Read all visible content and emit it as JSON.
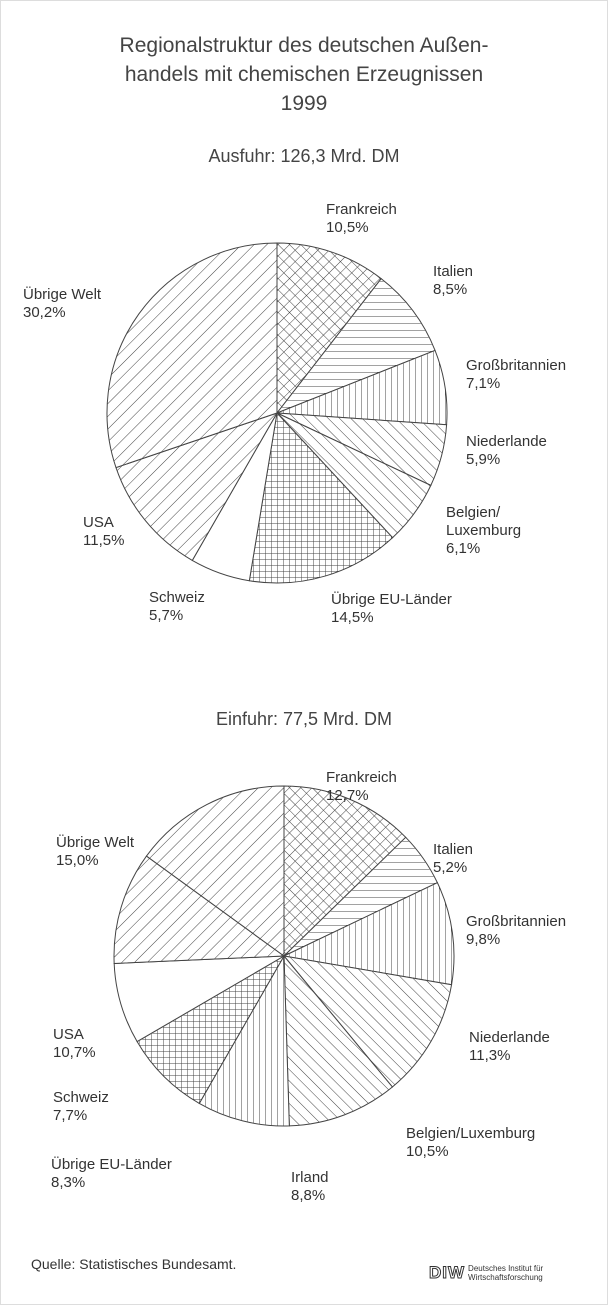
{
  "title": [
    "Regionalstruktur des deutschen Außen-",
    "handels mit chemischen Erzeugnissen",
    "1999"
  ],
  "chart_data": [
    {
      "type": "pie",
      "title": "Ausfuhr: 126,3 Mrd. DM",
      "categories": [
        "Frankreich",
        "Italien",
        "Großbritannien",
        "Niederlande",
        "Belgien/\nLuxemburg",
        "Übrige EU-Länder",
        "Schweiz",
        "USA",
        "Übrige Welt"
      ],
      "values": [
        10.5,
        8.5,
        7.1,
        5.9,
        6.1,
        14.5,
        5.7,
        11.5,
        30.2
      ],
      "value_labels": [
        "10,5%",
        "8,5%",
        "7,1%",
        "5,9%",
        "6,1%",
        "14,5%",
        "5,7%",
        "11,5%",
        "30,2%"
      ]
    },
    {
      "type": "pie",
      "title": "Einfuhr: 77,5 Mrd. DM",
      "categories": [
        "Frankreich",
        "Italien",
        "Großbritannien",
        "Niederlande",
        "Belgien/Luxemburg",
        "Irland",
        "Übrige EU-Länder",
        "Schweiz",
        "USA",
        "Übrige Welt"
      ],
      "values": [
        12.7,
        5.2,
        9.8,
        11.3,
        10.5,
        8.8,
        8.3,
        7.7,
        10.7,
        15.0
      ],
      "value_labels": [
        "12,7%",
        "5,2%",
        "9,8%",
        "11,3%",
        "10,5%",
        "8,8%",
        "8,3%",
        "7,7%",
        "10,7%",
        "15,0%"
      ]
    }
  ],
  "source": "Quelle: Statistisches Bundesamt.",
  "logo": {
    "mark": "DIW",
    "line1": "Deutsches Institut für",
    "line2": "Wirtschaftsforschung"
  }
}
